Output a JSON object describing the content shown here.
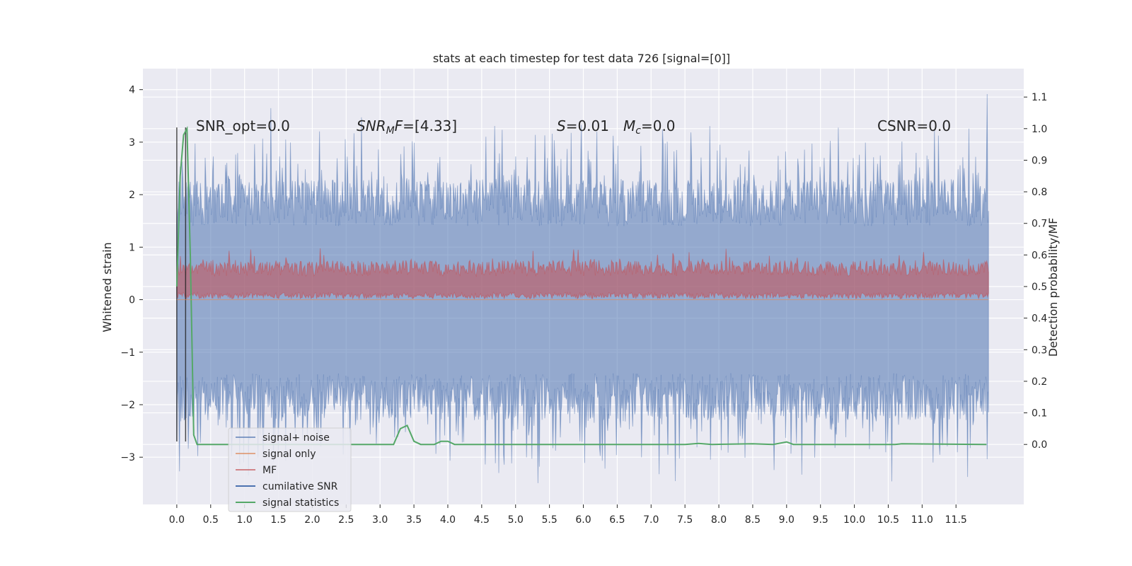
{
  "chart_data": {
    "type": "line",
    "title": "stats at each timestep for test data 726 [signal=[0]]",
    "xlabel": "",
    "ylabel": "Whitened strain",
    "y2label": "Detection probability/MF",
    "xlim": [
      -0.5,
      12.5
    ],
    "ylim": [
      -3.9,
      4.4
    ],
    "y2lim": [
      -0.19,
      1.19
    ],
    "x_ticks": [
      "0.0",
      "0.5",
      "1.0",
      "1.5",
      "2.0",
      "2.5",
      "3.0",
      "3.5",
      "4.0",
      "4.5",
      "5.0",
      "5.5",
      "6.0",
      "6.5",
      "7.0",
      "7.5",
      "8.0",
      "8.5",
      "9.0",
      "9.5",
      "10.0",
      "10.5",
      "11.0",
      "11.5"
    ],
    "y_ticks": [
      "4",
      "3",
      "2",
      "1",
      "0",
      "−1",
      "−2",
      "−3"
    ],
    "y2_ticks": [
      "1.1",
      "1.0",
      "0.9",
      "0.8",
      "0.7",
      "0.6",
      "0.5",
      "0.4",
      "0.3",
      "0.2",
      "0.1",
      "0.0"
    ],
    "grid": true,
    "legend_position": "lower-left",
    "annotations": {
      "snr_opt": "SNR_opt=0.0",
      "snr_mf_base": "SNR",
      "snr_mf_sub": "M",
      "snr_mf_rest": "F=[4.33]",
      "s_var": "S",
      "s_rest": "=0.01",
      "mc_var": "M",
      "mc_sub": "c",
      "mc_rest": "=0.0",
      "csnr": "CSNR=0.0"
    },
    "series": [
      {
        "name": "signal+ noise",
        "color": "#4c72b0",
        "style": "noise band ±1.5 with spikes to ±2.5"
      },
      {
        "name": "signal only",
        "color": "#dd8452",
        "style": "flat at 0"
      },
      {
        "name": "MF",
        "color": "#c44e52",
        "style": "band 0 to 0.8"
      },
      {
        "name": "cumilative SNR",
        "color": "#4c72b0",
        "style": "not visible"
      },
      {
        "name": "signal statistics",
        "color": "#55a868",
        "x": [
          0.0,
          0.05,
          0.1,
          0.15,
          0.2,
          0.25,
          0.3,
          3.2,
          3.3,
          3.4,
          3.5,
          3.6,
          3.8,
          3.9,
          4.0,
          4.1,
          4.3,
          5.0,
          7.5,
          7.7,
          7.9,
          8.5,
          8.8,
          9.0,
          9.1,
          10.6,
          10.7,
          11.95
        ],
        "values": [
          0.5,
          0.85,
          0.98,
          1.0,
          0.6,
          0.03,
          0.0,
          0.0,
          0.05,
          0.06,
          0.01,
          0.0,
          0.0,
          0.01,
          0.01,
          0.0,
          0.0,
          0.0,
          0.0,
          0.003,
          0.0,
          0.002,
          0.0,
          0.008,
          0.0,
          0.0,
          0.002,
          0.0
        ]
      }
    ],
    "vlines_black": [
      0.0,
      0.13
    ]
  }
}
